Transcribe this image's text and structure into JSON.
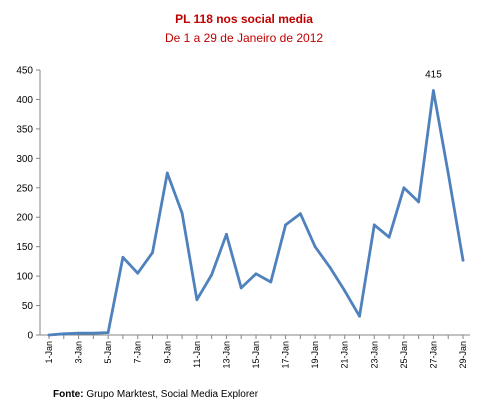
{
  "chart_data": {
    "type": "line",
    "title": "PL 118 nos social media",
    "subtitle": "De 1 a 29 de Janeiro de 2012",
    "x": [
      "1-Jan",
      "2-Jan",
      "3-Jan",
      "4-Jan",
      "5-Jan",
      "6-Jan",
      "7-Jan",
      "8-Jan",
      "9-Jan",
      "10-Jan",
      "11-Jan",
      "12-Jan",
      "13-Jan",
      "14-Jan",
      "15-Jan",
      "16-Jan",
      "17-Jan",
      "18-Jan",
      "19-Jan",
      "20-Jan",
      "21-Jan",
      "22-Jan",
      "23-Jan",
      "24-Jan",
      "25-Jan",
      "26-Jan",
      "27-Jan",
      "28-Jan",
      "29-Jan"
    ],
    "xtick_labels": [
      "1-Jan",
      "3-Jan",
      "5-Jan",
      "7-Jan",
      "9-Jan",
      "11-Jan",
      "13-Jan",
      "15-Jan",
      "17-Jan",
      "19-Jan",
      "21-Jan",
      "23-Jan",
      "25-Jan",
      "27-Jan",
      "29-Jan"
    ],
    "series": [
      {
        "values": [
          0,
          2,
          3,
          3,
          4,
          132,
          105,
          140,
          275,
          207,
          60,
          102,
          171,
          80,
          104,
          90,
          187,
          206,
          150,
          115,
          75,
          32,
          187,
          166,
          250,
          226,
          415,
          275,
          127
        ]
      }
    ],
    "ylim": [
      0,
      450
    ],
    "yticks": [
      "0",
      "50",
      "100",
      "150",
      "200",
      "250",
      "300",
      "350",
      "400",
      "450"
    ],
    "annotation": {
      "label": "415",
      "category": "27-Jan"
    },
    "line_color": "#4f81bd",
    "grid": false,
    "legend": "none"
  },
  "source": {
    "prefix": "Fonte:",
    "text": " Grupo Marktest, Social  Media Explorer"
  }
}
